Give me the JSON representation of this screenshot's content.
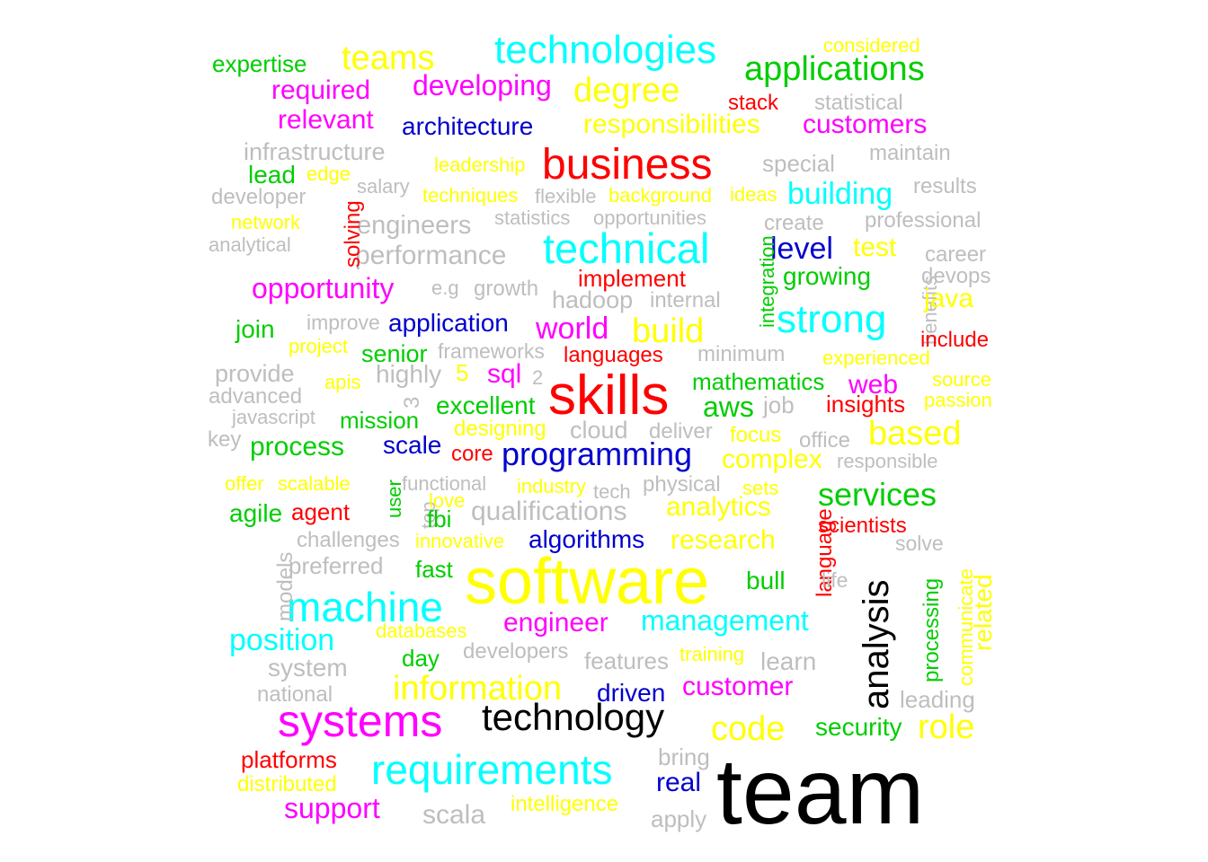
{
  "colors": {
    "black": "#000000",
    "yellow": "#ffff00",
    "red": "#ff0000",
    "magenta": "#ff00ff",
    "cyan": "#00ffff",
    "green": "#00cd00",
    "blue": "#0000cd",
    "gray": "#bebebe"
  },
  "words": [
    {
      "text": "team",
      "color": "black"
    },
    {
      "text": "software",
      "color": "yellow"
    },
    {
      "text": "skills",
      "color": "red"
    },
    {
      "text": "business",
      "color": "red"
    },
    {
      "text": "technical",
      "color": "cyan"
    },
    {
      "text": "technology",
      "color": "black"
    },
    {
      "text": "systems",
      "color": "magenta"
    },
    {
      "text": "analysis",
      "color": "black"
    },
    {
      "text": "technologies",
      "color": "cyan"
    },
    {
      "text": "machine",
      "color": "cyan"
    },
    {
      "text": "requirements",
      "color": "cyan"
    },
    {
      "text": "strong",
      "color": "cyan"
    },
    {
      "text": "information",
      "color": "yellow"
    },
    {
      "text": "programming",
      "color": "blue"
    },
    {
      "text": "applications",
      "color": "green"
    },
    {
      "text": "degree",
      "color": "yellow"
    },
    {
      "text": "teams",
      "color": "yellow"
    },
    {
      "text": "based",
      "color": "yellow"
    },
    {
      "text": "build",
      "color": "yellow"
    },
    {
      "text": "code",
      "color": "yellow"
    },
    {
      "text": "role",
      "color": "yellow"
    },
    {
      "text": "services",
      "color": "green"
    },
    {
      "text": "management",
      "color": "cyan"
    },
    {
      "text": "building",
      "color": "cyan"
    },
    {
      "text": "opportunity",
      "color": "magenta"
    },
    {
      "text": "developing",
      "color": "magenta"
    },
    {
      "text": "customers",
      "color": "magenta"
    },
    {
      "text": "responsibilities",
      "color": "yellow"
    },
    {
      "text": "world",
      "color": "magenta"
    },
    {
      "text": "level",
      "color": "blue"
    },
    {
      "text": "position",
      "color": "cyan"
    },
    {
      "text": "engineer",
      "color": "magenta"
    },
    {
      "text": "customer",
      "color": "magenta"
    },
    {
      "text": "support",
      "color": "magenta"
    },
    {
      "text": "required",
      "color": "magenta"
    },
    {
      "text": "relevant",
      "color": "magenta"
    },
    {
      "text": "architecture",
      "color": "blue"
    },
    {
      "text": "application",
      "color": "blue"
    },
    {
      "text": "algorithms",
      "color": "blue"
    },
    {
      "text": "complex",
      "color": "yellow"
    },
    {
      "text": "analytics",
      "color": "yellow"
    },
    {
      "text": "research",
      "color": "yellow"
    },
    {
      "text": "process",
      "color": "green"
    },
    {
      "text": "excellent",
      "color": "green"
    },
    {
      "text": "mathematics",
      "color": "green"
    },
    {
      "text": "aws",
      "color": "green"
    },
    {
      "text": "qualifications",
      "color": "gray"
    },
    {
      "text": "performance",
      "color": "gray"
    },
    {
      "text": "infrastructure",
      "color": "gray"
    },
    {
      "text": "engineers",
      "color": "gray"
    },
    {
      "text": "related",
      "color": "yellow"
    },
    {
      "text": "expertise",
      "color": "green"
    },
    {
      "text": "considered",
      "color": "yellow"
    },
    {
      "text": "stack",
      "color": "red"
    },
    {
      "text": "statistical",
      "color": "gray"
    },
    {
      "text": "special",
      "color": "gray"
    },
    {
      "text": "maintain",
      "color": "gray"
    },
    {
      "text": "lead",
      "color": "green"
    },
    {
      "text": "edge",
      "color": "yellow"
    },
    {
      "text": "leadership",
      "color": "yellow"
    },
    {
      "text": "developer",
      "color": "gray"
    },
    {
      "text": "salary",
      "color": "gray"
    },
    {
      "text": "techniques",
      "color": "yellow"
    },
    {
      "text": "flexible",
      "color": "gray"
    },
    {
      "text": "background",
      "color": "yellow"
    },
    {
      "text": "ideas",
      "color": "yellow"
    },
    {
      "text": "results",
      "color": "gray"
    },
    {
      "text": "network",
      "color": "yellow"
    },
    {
      "text": "solving",
      "color": "red"
    },
    {
      "text": "statistics",
      "color": "gray"
    },
    {
      "text": "opportunities",
      "color": "gray"
    },
    {
      "text": "create",
      "color": "gray"
    },
    {
      "text": "professional",
      "color": "gray"
    },
    {
      "text": "analytical",
      "color": "gray"
    },
    {
      "text": "integration",
      "color": "green"
    },
    {
      "text": "test",
      "color": "yellow"
    },
    {
      "text": "career",
      "color": "gray"
    },
    {
      "text": "implement",
      "color": "red"
    },
    {
      "text": "growing",
      "color": "green"
    },
    {
      "text": "devops",
      "color": "gray"
    },
    {
      "text": "benefits",
      "color": "gray"
    },
    {
      "text": "e.g",
      "color": "gray"
    },
    {
      "text": "growth",
      "color": "gray"
    },
    {
      "text": "hadoop",
      "color": "gray"
    },
    {
      "text": "internal",
      "color": "gray"
    },
    {
      "text": "java",
      "color": "yellow"
    },
    {
      "text": "join",
      "color": "green"
    },
    {
      "text": "improve",
      "color": "gray"
    },
    {
      "text": "include",
      "color": "red"
    },
    {
      "text": "project",
      "color": "yellow"
    },
    {
      "text": "senior",
      "color": "green"
    },
    {
      "text": "frameworks",
      "color": "gray"
    },
    {
      "text": "languages",
      "color": "red"
    },
    {
      "text": "minimum",
      "color": "gray"
    },
    {
      "text": "experienced",
      "color": "yellow"
    },
    {
      "text": "provide",
      "color": "gray"
    },
    {
      "text": "highly",
      "color": "gray"
    },
    {
      "text": "5",
      "color": "yellow"
    },
    {
      "text": "sql",
      "color": "magenta"
    },
    {
      "text": "2",
      "color": "gray"
    },
    {
      "text": "source",
      "color": "yellow"
    },
    {
      "text": "web",
      "color": "magenta"
    },
    {
      "text": "apis",
      "color": "yellow"
    },
    {
      "text": "advanced",
      "color": "gray"
    },
    {
      "text": "3",
      "color": "gray"
    },
    {
      "text": "passion",
      "color": "yellow"
    },
    {
      "text": "insights",
      "color": "red"
    },
    {
      "text": "job",
      "color": "gray"
    },
    {
      "text": "javascript",
      "color": "gray"
    },
    {
      "text": "mission",
      "color": "green"
    },
    {
      "text": "designing",
      "color": "yellow"
    },
    {
      "text": "cloud",
      "color": "gray"
    },
    {
      "text": "deliver",
      "color": "gray"
    },
    {
      "text": "focus",
      "color": "yellow"
    },
    {
      "text": "office",
      "color": "gray"
    },
    {
      "text": "key",
      "color": "gray"
    },
    {
      "text": "scale",
      "color": "blue"
    },
    {
      "text": "core",
      "color": "red"
    },
    {
      "text": "responsible",
      "color": "gray"
    },
    {
      "text": "offer",
      "color": "yellow"
    },
    {
      "text": "scalable",
      "color": "yellow"
    },
    {
      "text": "user",
      "color": "green"
    },
    {
      "text": "functional",
      "color": "gray"
    },
    {
      "text": "industry",
      "color": "yellow"
    },
    {
      "text": "tech",
      "color": "gray"
    },
    {
      "text": "physical",
      "color": "gray"
    },
    {
      "text": "sets",
      "color": "yellow"
    },
    {
      "text": "agile",
      "color": "green"
    },
    {
      "text": "agent",
      "color": "red"
    },
    {
      "text": "top",
      "color": "gray"
    },
    {
      "text": "love",
      "color": "yellow"
    },
    {
      "text": "fbi",
      "color": "green"
    },
    {
      "text": "language",
      "color": "red"
    },
    {
      "text": "scientists",
      "color": "red"
    },
    {
      "text": "challenges",
      "color": "gray"
    },
    {
      "text": "innovative",
      "color": "yellow"
    },
    {
      "text": "solve",
      "color": "gray"
    },
    {
      "text": "models",
      "color": "gray"
    },
    {
      "text": "preferred",
      "color": "gray"
    },
    {
      "text": "fast",
      "color": "green"
    },
    {
      "text": "bull",
      "color": "green"
    },
    {
      "text": "life",
      "color": "gray"
    },
    {
      "text": "processing",
      "color": "green"
    },
    {
      "text": "communicate",
      "color": "yellow"
    },
    {
      "text": "databases",
      "color": "yellow"
    },
    {
      "text": "day",
      "color": "green"
    },
    {
      "text": "developers",
      "color": "gray"
    },
    {
      "text": "features",
      "color": "gray"
    },
    {
      "text": "training",
      "color": "yellow"
    },
    {
      "text": "learn",
      "color": "gray"
    },
    {
      "text": "system",
      "color": "gray"
    },
    {
      "text": "national",
      "color": "gray"
    },
    {
      "text": "driven",
      "color": "blue"
    },
    {
      "text": "leading",
      "color": "gray"
    },
    {
      "text": "security",
      "color": "green"
    },
    {
      "text": "platforms",
      "color": "red"
    },
    {
      "text": "bring",
      "color": "gray"
    },
    {
      "text": "distributed",
      "color": "yellow"
    },
    {
      "text": "real",
      "color": "blue"
    },
    {
      "text": "intelligence",
      "color": "yellow"
    },
    {
      "text": "scala",
      "color": "gray"
    },
    {
      "text": "apply",
      "color": "gray"
    }
  ]
}
